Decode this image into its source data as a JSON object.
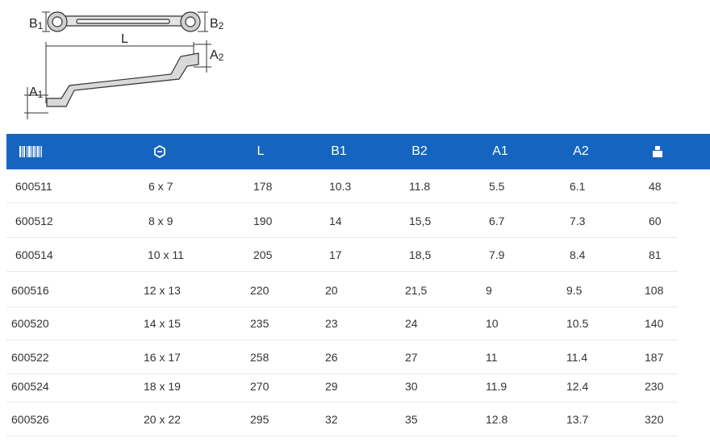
{
  "diagram": {
    "labels": {
      "b1": {
        "main": "B",
        "sub": "1"
      },
      "b2": {
        "main": "B",
        "sub": "2"
      },
      "l": {
        "main": "L",
        "sub": ""
      },
      "a1": {
        "main": "A",
        "sub": "1"
      },
      "a2": {
        "main": "A",
        "sub": "2"
      }
    }
  },
  "table": {
    "header_icons": {
      "first": "barcode-icon",
      "second": "wrench-size-icon",
      "last": "weight-icon"
    },
    "headers": [
      "",
      "",
      "L",
      "B1",
      "B2",
      "A1",
      "A2",
      ""
    ],
    "header_color": "#1565c0",
    "rows": [
      [
        "600511",
        "6 x 7",
        "178",
        "10.3",
        "11.8",
        "5.5",
        "6.1",
        "48"
      ],
      [
        "600512",
        "8 x 9",
        "190",
        "14",
        "15,5",
        "6.7",
        "7.3",
        "60"
      ],
      [
        "600514",
        "10 x 11",
        "205",
        "17",
        "18,5",
        "7.9",
        "8.4",
        "81"
      ],
      [
        "600516",
        "12 x 13",
        "220",
        "20",
        "21,5",
        "9",
        "9.5",
        "108"
      ],
      [
        "600520",
        "14 x 15",
        "235",
        "23",
        "24",
        "10",
        "10.5",
        "140"
      ],
      [
        "600522",
        "16 x 17",
        "258",
        "26",
        "27",
        "11",
        "11.4",
        "187"
      ],
      [
        "600524",
        "18 x 19",
        "270",
        "29",
        "30",
        "11.9",
        "12.4",
        "230"
      ],
      [
        "600526",
        "20 x 22",
        "295",
        "32",
        "35",
        "12.8",
        "13.7",
        "320"
      ]
    ]
  }
}
